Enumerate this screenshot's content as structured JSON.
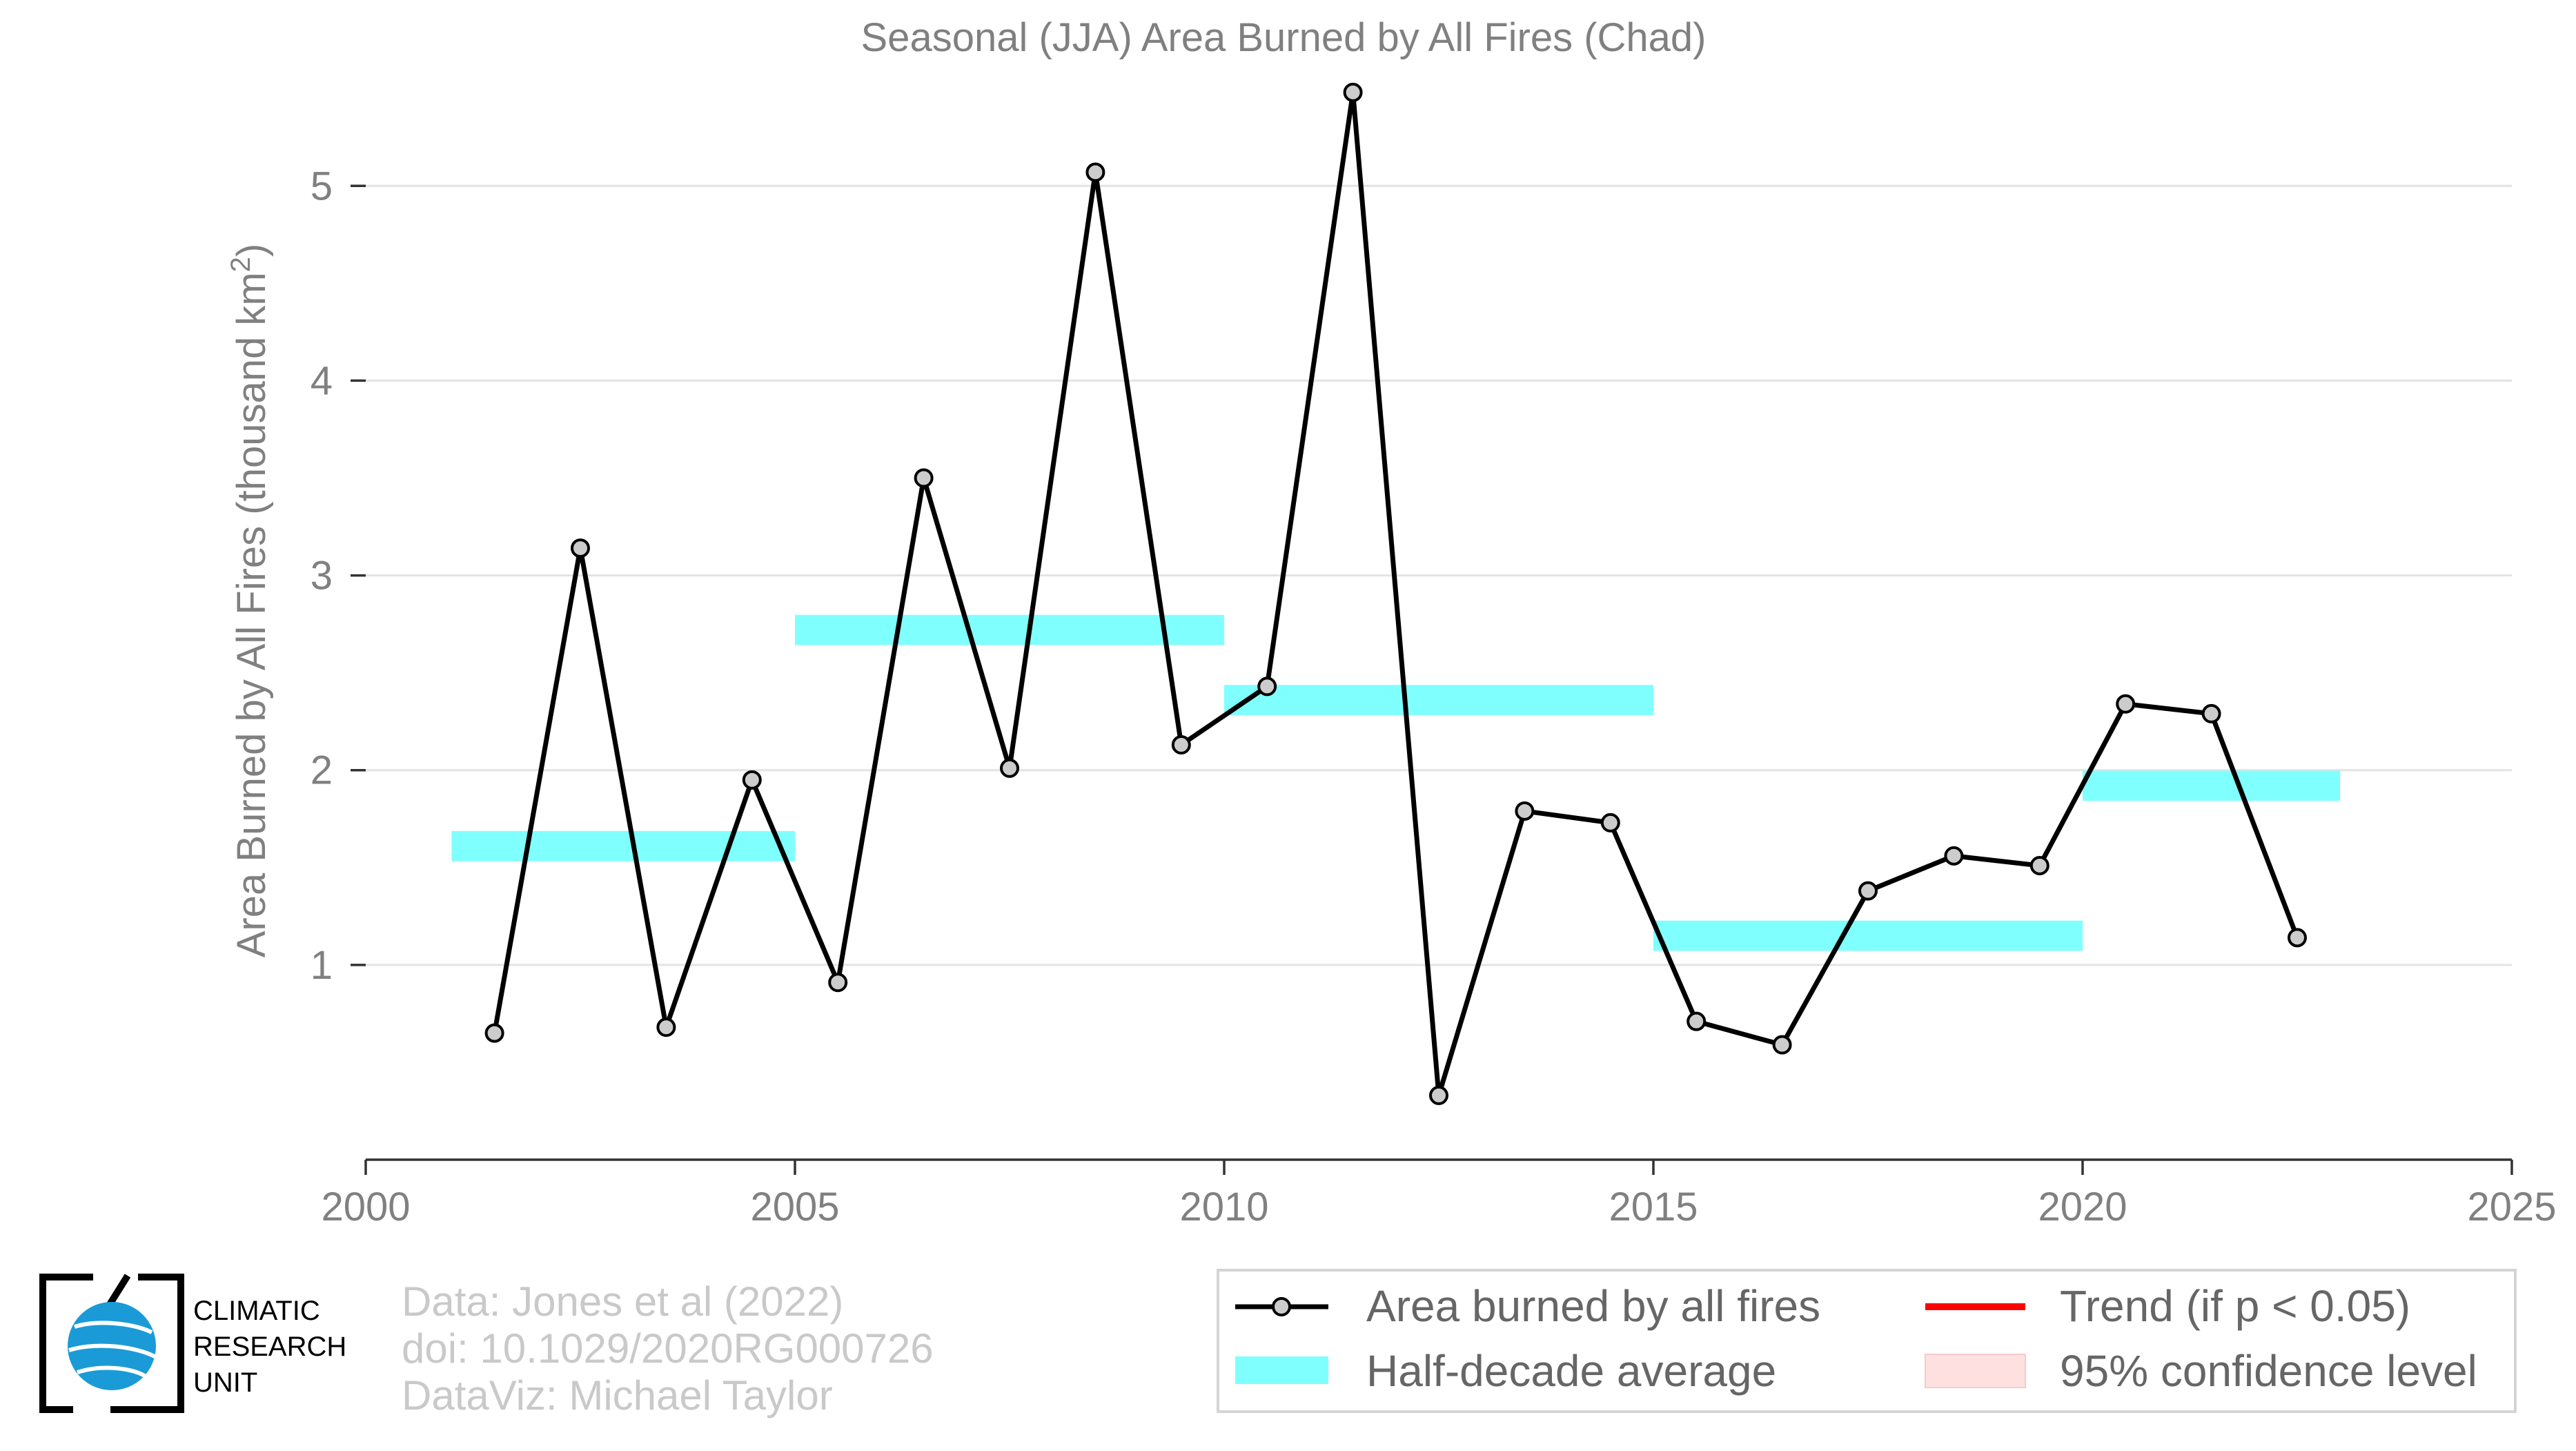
{
  "chart_data": {
    "type": "line",
    "title": "Seasonal (JJA) Area Burned by All Fires (Chad)",
    "ylabel": "Area Burned by All Fires (thousand km",
    "ylabel_sup": "2",
    "ylabel_close": ")",
    "xlim": [
      2000,
      2025
    ],
    "ylim": [
      0,
      5.6
    ],
    "x_ticks": [
      2000,
      2005,
      2010,
      2015,
      2020,
      2025
    ],
    "y_ticks": [
      1,
      2,
      3,
      4,
      5
    ],
    "grid": true,
    "colors": {
      "series_line": "#000000",
      "series_marker_fill": "#cccccc",
      "half_decade": "#80ffff",
      "trend": "#ff0000",
      "confidence": "#ffe0e0"
    },
    "series": [
      {
        "name": "Area burned by all fires",
        "x": [
          2001.5,
          2002.5,
          2003.5,
          2004.5,
          2005.5,
          2006.5,
          2007.5,
          2008.5,
          2009.5,
          2010.5,
          2011.5,
          2012.5,
          2013.5,
          2014.5,
          2015.5,
          2016.5,
          2017.5,
          2018.5,
          2019.5,
          2020.5,
          2021.5,
          2022.5
        ],
        "y": [
          0.65,
          3.14,
          0.68,
          1.95,
          0.91,
          3.5,
          2.01,
          5.07,
          2.13,
          2.43,
          5.48,
          0.33,
          1.79,
          1.73,
          0.71,
          0.59,
          1.38,
          1.56,
          1.51,
          2.34,
          2.29,
          1.14
        ]
      }
    ],
    "half_decade_average": {
      "name": "Half-decade average",
      "segments": [
        {
          "x0": 2001,
          "x1": 2005,
          "y": 1.61
        },
        {
          "x0": 2005,
          "x1": 2010,
          "y": 2.72
        },
        {
          "x0": 2010,
          "x1": 2015,
          "y": 2.36
        },
        {
          "x0": 2015,
          "x1": 2020,
          "y": 1.15
        },
        {
          "x0": 2020,
          "x1": 2023,
          "y": 1.92
        }
      ]
    },
    "legend": {
      "placement": "bottom-right",
      "entries": [
        {
          "label": "Area burned by all fires",
          "kind": "line-marker"
        },
        {
          "label": "Trend (if p < 0.05)",
          "kind": "line-red"
        },
        {
          "label": "Half-decade average",
          "kind": "band-cyan"
        },
        {
          "label": "95% confidence level",
          "kind": "band-pink"
        }
      ]
    }
  },
  "credits": {
    "line1": "Data: Jones et al (2022)",
    "line2": "doi: 10.1029/2020RG000726",
    "line3": "DataViz: Michael Taylor"
  },
  "logo": {
    "line1": "CLIMATIC",
    "line2": "RESEARCH",
    "line3": "UNIT"
  }
}
